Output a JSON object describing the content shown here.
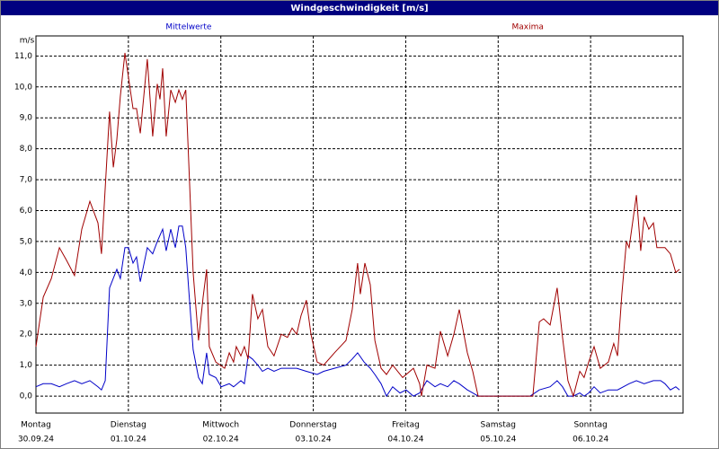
{
  "chart_data": {
    "type": "line",
    "title": "Windgeschwindigkeit [m/s]",
    "y_label": "m/s",
    "xlim": [
      0,
      168
    ],
    "ylim": [
      -0.55,
      11.65
    ],
    "xticks": [
      {
        "value": 0,
        "label": "Montag"
      },
      {
        "value": 24,
        "label": "Dienstag"
      },
      {
        "value": 48,
        "label": "Mittwoch"
      },
      {
        "value": 72,
        "label": "Donnerstag"
      },
      {
        "value": 96,
        "label": "Freitag"
      },
      {
        "value": 120,
        "label": "Samstag"
      },
      {
        "value": 144,
        "label": "Sonntag"
      }
    ],
    "xtick_dates": [
      "30.09.24",
      "01.10.24",
      "02.10.24",
      "03.10.24",
      "04.10.24",
      "05.10.24",
      "06.10.24"
    ],
    "yticks": [
      {
        "value": 0,
        "label": "0,0"
      },
      {
        "value": 1,
        "label": "1,0"
      },
      {
        "value": 2,
        "label": "2,0"
      },
      {
        "value": 3,
        "label": "3,0"
      },
      {
        "value": 4,
        "label": "4,0"
      },
      {
        "value": 5,
        "label": "5,0"
      },
      {
        "value": 6,
        "label": "6,0"
      },
      {
        "value": 7,
        "label": "7,0"
      },
      {
        "value": 8,
        "label": "8,0"
      },
      {
        "value": 9,
        "label": "9,0"
      },
      {
        "value": 10,
        "label": "10,0"
      },
      {
        "value": 11,
        "label": "11,0"
      }
    ],
    "grid": true,
    "series": [
      {
        "name": "Mittelwerte",
        "color": "#0000c8",
        "x": [
          0,
          1.9,
          4.0,
          6.1,
          7.9,
          10.0,
          11.9,
          14.0,
          16.1,
          17.0,
          18.0,
          19.1,
          21.0,
          21.9,
          23.1,
          24.0,
          25.2,
          26.1,
          27.1,
          28.9,
          30.3,
          31.5,
          32.9,
          33.8,
          35.0,
          36.2,
          37.1,
          38.0,
          38.9,
          39.7,
          40.8,
          42.2,
          43.2,
          44.3,
          45.0,
          46.7,
          48.1,
          50.2,
          51.3,
          53.2,
          54.1,
          55.1,
          56.2,
          57.6,
          58.8,
          60.2,
          61.8,
          63.7,
          65.3,
          67.7,
          70.2,
          73.0,
          74.7,
          77.5,
          80.5,
          82.1,
          83.5,
          85.2,
          86.8,
          88.0,
          89.6,
          91.0,
          92.6,
          94.5,
          96.1,
          98.0,
          99.6,
          101.5,
          103.6,
          105.0,
          106.9,
          108.5,
          109.9,
          112.0,
          113.4,
          114.8,
          128.3,
          130.7,
          133.5,
          135.3,
          136.7,
          138.1,
          139.5,
          141.2,
          142.3,
          143.5,
          144.9,
          146.5,
          148.6,
          151.0,
          154.0,
          155.9,
          157.9,
          160.3,
          162.2,
          163.3,
          164.7,
          166.1,
          167.1
        ],
        "values": [
          0.3,
          0.4,
          0.4,
          0.3,
          0.4,
          0.5,
          0.4,
          0.5,
          0.3,
          0.2,
          0.5,
          3.5,
          4.1,
          3.8,
          4.8,
          4.8,
          4.3,
          4.5,
          3.7,
          4.8,
          4.6,
          5.0,
          5.4,
          4.7,
          5.4,
          4.8,
          5.5,
          5.5,
          4.8,
          3.4,
          1.5,
          0.6,
          0.4,
          1.4,
          0.7,
          0.6,
          0.3,
          0.4,
          0.3,
          0.5,
          0.4,
          1.3,
          1.2,
          1.0,
          0.8,
          0.9,
          0.8,
          0.9,
          0.9,
          0.9,
          0.8,
          0.7,
          0.8,
          0.9,
          1.0,
          1.2,
          1.4,
          1.1,
          0.9,
          0.7,
          0.4,
          0.0,
          0.3,
          0.1,
          0.2,
          0.0,
          0.1,
          0.5,
          0.3,
          0.4,
          0.3,
          0.5,
          0.4,
          0.2,
          0.1,
          0.0,
          0.0,
          0.2,
          0.3,
          0.5,
          0.3,
          0.0,
          0.0,
          0.1,
          0.0,
          0.1,
          0.3,
          0.1,
          0.2,
          0.2,
          0.4,
          0.5,
          0.4,
          0.5,
          0.5,
          0.4,
          0.2,
          0.3,
          0.2
        ]
      },
      {
        "name": "Maxima",
        "color": "#a00000",
        "x": [
          0,
          1.9,
          4.0,
          6.1,
          7.9,
          10.0,
          11.9,
          14.0,
          16.1,
          17.0,
          19.1,
          20.1,
          21.0,
          21.9,
          23.1,
          25.2,
          26.1,
          27.1,
          28.9,
          30.3,
          31.5,
          32.2,
          32.9,
          33.8,
          35.0,
          36.2,
          37.1,
          38.0,
          38.9,
          39.7,
          40.8,
          42.2,
          43.4,
          44.3,
          45.0,
          46.7,
          49.0,
          50.2,
          51.3,
          52.0,
          53.2,
          54.1,
          55.1,
          56.2,
          57.6,
          58.8,
          60.2,
          61.8,
          63.7,
          65.3,
          66.5,
          67.7,
          68.8,
          70.2,
          71.4,
          73.0,
          74.7,
          77.5,
          80.5,
          82.1,
          83.5,
          84.2,
          85.4,
          86.8,
          88.0,
          89.6,
          91.0,
          92.6,
          95.2,
          98.0,
          99.6,
          100.1,
          101.5,
          103.6,
          105.0,
          106.9,
          108.5,
          109.9,
          112.0,
          113.4,
          114.8,
          128.3,
          129.0,
          130.7,
          131.8,
          133.5,
          135.3,
          136.7,
          138.1,
          139.5,
          141.2,
          142.3,
          143.5,
          144.9,
          146.5,
          148.6,
          150.0,
          151.0,
          152.1,
          153.3,
          154.0,
          155.9,
          157.0,
          157.9,
          159.1,
          160.3,
          161.2,
          163.3,
          164.7,
          166.1,
          167.1
        ],
        "values": [
          1.6,
          3.2,
          3.8,
          4.8,
          4.4,
          3.9,
          5.4,
          6.3,
          5.6,
          4.6,
          9.2,
          7.4,
          8.3,
          9.7,
          11.1,
          9.3,
          9.3,
          8.5,
          10.9,
          8.4,
          10.1,
          9.6,
          10.6,
          8.4,
          9.9,
          9.5,
          9.9,
          9.6,
          9.9,
          7.5,
          4.0,
          1.8,
          3.2,
          4.1,
          1.6,
          1.1,
          0.9,
          1.4,
          1.1,
          1.6,
          1.3,
          1.6,
          1.2,
          3.3,
          2.5,
          2.8,
          1.6,
          1.3,
          2.0,
          1.9,
          2.2,
          2.0,
          2.6,
          3.1,
          2.0,
          1.1,
          1.0,
          1.4,
          1.8,
          2.8,
          4.3,
          3.3,
          4.3,
          3.6,
          1.8,
          0.9,
          0.7,
          1.0,
          0.6,
          0.9,
          0.4,
          0.0,
          1.0,
          0.9,
          2.1,
          1.3,
          2.0,
          2.8,
          1.4,
          0.8,
          0.0,
          0.0,
          0.0,
          2.4,
          2.5,
          2.3,
          3.5,
          1.9,
          0.5,
          0.0,
          0.8,
          0.6,
          1.1,
          1.6,
          0.9,
          1.1,
          1.7,
          1.3,
          3.3,
          5.0,
          4.8,
          6.5,
          4.7,
          5.8,
          5.4,
          5.6,
          4.8,
          4.8,
          4.6,
          4.0,
          4.1
        ]
      }
    ]
  }
}
